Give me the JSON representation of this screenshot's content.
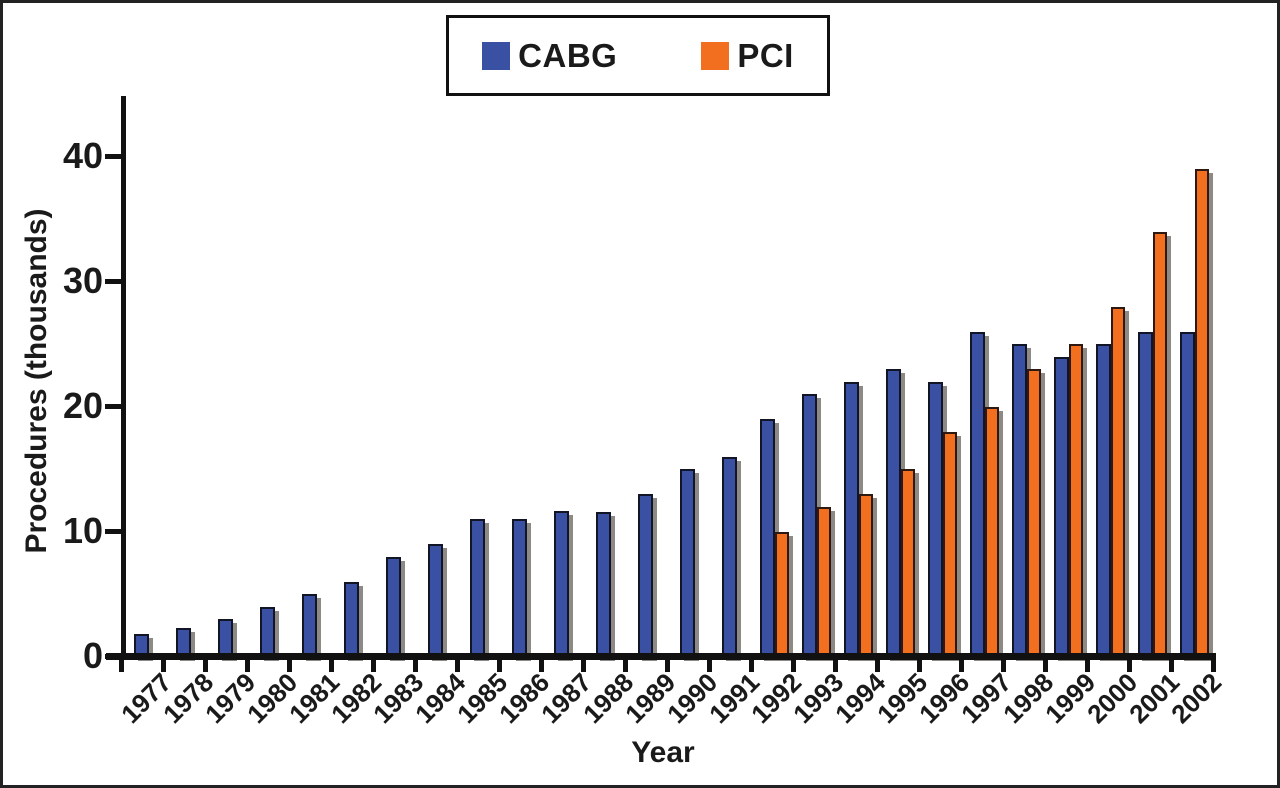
{
  "chart_data": {
    "type": "bar",
    "title": "",
    "xlabel": "Year",
    "ylabel": "Procedures (thousands)",
    "ylim": [
      0,
      45
    ],
    "yticks": [
      0,
      10,
      20,
      30,
      40
    ],
    "grid": false,
    "legend_position": "top-center",
    "categories": [
      "1977",
      "1978",
      "1979",
      "1980",
      "1981",
      "1982",
      "1983",
      "1984",
      "1985",
      "1986",
      "1987",
      "1988",
      "1989",
      "1990",
      "1991",
      "1992",
      "1993",
      "1994",
      "1995",
      "1996",
      "1997",
      "1998",
      "1999",
      "2000",
      "2001",
      "2002"
    ],
    "series": [
      {
        "name": "CABG",
        "color": "#3A51A3",
        "values": [
          1.8,
          2.3,
          3,
          4,
          5,
          6,
          8,
          9,
          11,
          11,
          11.7,
          11.6,
          13,
          15,
          16,
          19,
          21,
          22,
          23,
          22,
          26,
          25,
          24,
          25,
          26,
          26
        ]
      },
      {
        "name": "PCI",
        "color": "#F26F1F",
        "values": [
          null,
          null,
          null,
          null,
          null,
          null,
          null,
          null,
          null,
          null,
          null,
          null,
          null,
          null,
          null,
          10,
          12,
          13,
          15,
          18,
          20,
          23,
          25,
          28,
          34,
          39
        ]
      }
    ]
  },
  "colors": {
    "cabg": "#3A51A3",
    "pci": "#F26F1F",
    "axis": "#111111",
    "shadow": "#8d8a85",
    "text": "#1a1a1a"
  }
}
